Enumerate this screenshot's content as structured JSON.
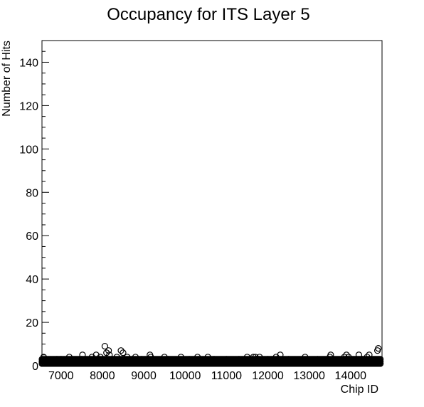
{
  "chart_data": {
    "type": "scatter",
    "title": "Occupancy for ITS Layer 5",
    "xlabel": "Chip ID",
    "ylabel": "Number of Hits",
    "xlim": [
      6540,
      14760
    ],
    "ylim": [
      0,
      150
    ],
    "x_ticks": [
      7000,
      8000,
      9000,
      10000,
      11000,
      12000,
      13000,
      14000
    ],
    "y_ticks": [
      0,
      20,
      40,
      60,
      80,
      100,
      120,
      140
    ],
    "marker": "open-circle",
    "grid": false,
    "legend": "none",
    "baseline_band": {
      "x_range": [
        6540,
        14730
      ],
      "y_values": [
        1,
        2,
        3
      ]
    },
    "highlighted_points": [
      {
        "x": 6580,
        "y": 4
      },
      {
        "x": 6900,
        "y": 3
      },
      {
        "x": 7000,
        "y": 3
      },
      {
        "x": 7200,
        "y": 4
      },
      {
        "x": 7500,
        "y": 3
      },
      {
        "x": 7520,
        "y": 5
      },
      {
        "x": 7750,
        "y": 4
      },
      {
        "x": 7850,
        "y": 5
      },
      {
        "x": 7950,
        "y": 4
      },
      {
        "x": 8060,
        "y": 9
      },
      {
        "x": 8100,
        "y": 6
      },
      {
        "x": 8150,
        "y": 7
      },
      {
        "x": 8170,
        "y": 5
      },
      {
        "x": 8350,
        "y": 4
      },
      {
        "x": 8450,
        "y": 7
      },
      {
        "x": 8500,
        "y": 6
      },
      {
        "x": 8600,
        "y": 4
      },
      {
        "x": 8800,
        "y": 4
      },
      {
        "x": 8950,
        "y": 3
      },
      {
        "x": 9150,
        "y": 5
      },
      {
        "x": 9170,
        "y": 4
      },
      {
        "x": 9500,
        "y": 4
      },
      {
        "x": 9600,
        "y": 3
      },
      {
        "x": 9900,
        "y": 4
      },
      {
        "x": 10100,
        "y": 3
      },
      {
        "x": 10300,
        "y": 4
      },
      {
        "x": 10320,
        "y": 3
      },
      {
        "x": 10550,
        "y": 4
      },
      {
        "x": 10700,
        "y": 3
      },
      {
        "x": 11000,
        "y": 3
      },
      {
        "x": 11300,
        "y": 3
      },
      {
        "x": 11500,
        "y": 4
      },
      {
        "x": 11650,
        "y": 4
      },
      {
        "x": 11700,
        "y": 4
      },
      {
        "x": 11800,
        "y": 4
      },
      {
        "x": 12000,
        "y": 3
      },
      {
        "x": 12200,
        "y": 4
      },
      {
        "x": 12300,
        "y": 5
      },
      {
        "x": 12500,
        "y": 3
      },
      {
        "x": 12900,
        "y": 4
      },
      {
        "x": 13200,
        "y": 3
      },
      {
        "x": 13500,
        "y": 4
      },
      {
        "x": 13520,
        "y": 5
      },
      {
        "x": 13850,
        "y": 4
      },
      {
        "x": 13900,
        "y": 5
      },
      {
        "x": 13950,
        "y": 4
      },
      {
        "x": 14200,
        "y": 5
      },
      {
        "x": 14400,
        "y": 4
      },
      {
        "x": 14450,
        "y": 5
      },
      {
        "x": 14650,
        "y": 7
      },
      {
        "x": 14670,
        "y": 8
      }
    ]
  }
}
